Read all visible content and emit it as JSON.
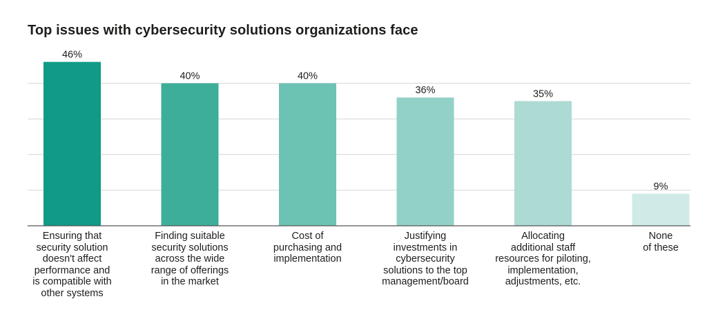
{
  "chart_data": {
    "type": "bar",
    "title": "Top issues with cybersecurity solutions organizations face",
    "categories": [
      "Ensuring that\nsecurity solution\ndoesn't affect\nperformance and\nis compatible with\nother systems",
      "Finding suitable\nsecurity solutions\nacross the wide\nrange of offerings\nin the market",
      "Cost of\npurchasing and\nimplementation",
      "Justifying\ninvestments in\ncybersecurity\nsolutions to the top\nmanagement/board",
      "Allocating\nadditional staff\nresources for piloting,\nimplementation,\nadjustments, etc.",
      "None\nof these"
    ],
    "values": [
      46,
      40,
      40,
      36,
      35,
      9
    ],
    "value_labels": [
      "46%",
      "40%",
      "40%",
      "36%",
      "35%",
      "9%"
    ],
    "colors": [
      "#119a85",
      "#3dae9a",
      "#6cc2b3",
      "#92d1c7",
      "#acdbd4",
      "#d0ebe7"
    ],
    "ylim": [
      0,
      50
    ],
    "grid": true,
    "xlabel": "",
    "ylabel": ""
  }
}
